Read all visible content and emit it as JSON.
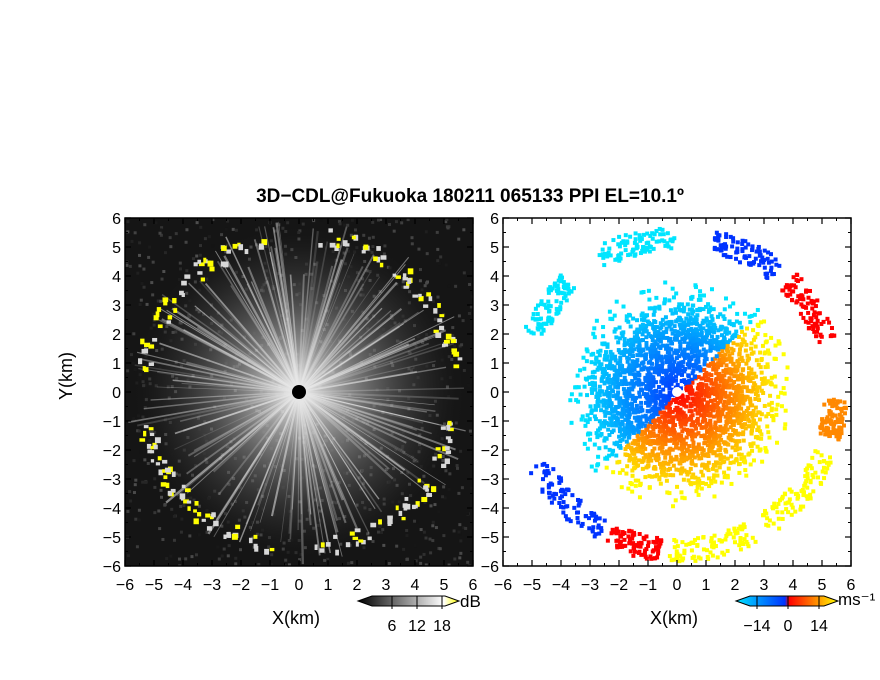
{
  "title": "3D−CDL@Fukuoka 180211 065133 PPI EL=10.1º",
  "chart_data": [
    {
      "type": "heatmap",
      "panel": "reflectivity",
      "xlabel": "X(km)",
      "ylabel": "Y(km)",
      "xlim": [
        -6,
        6
      ],
      "ylim": [
        -6,
        6
      ],
      "xticks": [
        "−6",
        "−5",
        "−4",
        "−3",
        "−2",
        "−1",
        "0",
        "1",
        "2",
        "3",
        "4",
        "5",
        "6"
      ],
      "yticks": [
        "6",
        "5",
        "4",
        "3",
        "2",
        "1",
        "0",
        "−1",
        "−2",
        "−3",
        "−4",
        "−5",
        "−6"
      ],
      "colorbar": {
        "unit": "dB",
        "ticks": [
          "6",
          "12",
          "18"
        ],
        "colors": [
          "#000000",
          "#ffffff",
          "#ffff00"
        ]
      },
      "colors": {
        "background": "#151515",
        "ring": "#ffff00",
        "center": "#000000"
      }
    },
    {
      "type": "heatmap",
      "panel": "doppler_velocity",
      "xlabel": "X(km)",
      "xlim": [
        -6,
        6
      ],
      "ylim": [
        -6,
        6
      ],
      "xticks": [
        "−6",
        "−5",
        "−4",
        "−3",
        "−2",
        "−1",
        "0",
        "1",
        "2",
        "3",
        "4",
        "5",
        "6"
      ],
      "yticks": [
        "6",
        "5",
        "4",
        "3",
        "2",
        "1",
        "0",
        "−1",
        "−2",
        "−3",
        "−4",
        "−5",
        "−6"
      ],
      "colorbar": {
        "unit": "ms⁻¹",
        "ticks": [
          "−14",
          "0",
          "14"
        ],
        "colors": [
          "#00e5ff",
          "#0033ff",
          "#ff0000",
          "#ffff00"
        ]
      },
      "colors": {
        "negative_far": "#00e5ff",
        "negative_near": "#0033ff",
        "positive_near": "#ff0000",
        "positive_far": "#ffff00"
      }
    }
  ]
}
